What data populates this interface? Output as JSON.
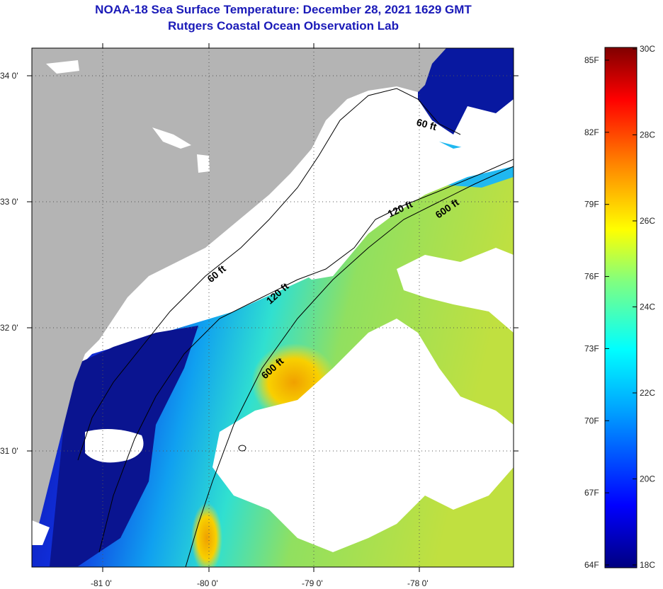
{
  "title": {
    "line1": "NOAA-18 Sea Surface Temperature:  December 28, 2021 1629 GMT",
    "line2": "Rutgers Coastal Ocean Observation Lab"
  },
  "map": {
    "lat_labels": [
      "34 0'",
      "33 0'",
      "32 0'",
      "31 0'"
    ],
    "lon_labels": [
      "-81 0'",
      "-80 0'",
      "-79 0'",
      "-78 0'"
    ],
    "depth_contours": [
      "60 ft",
      "120 ft",
      "600 ft",
      "60 ft",
      "120 ft",
      "600 ft"
    ],
    "colors": {
      "land": "#b4b4b4",
      "cloud": "#ffffff",
      "cold": "#0a1aa0",
      "warm": "#f0b000"
    }
  },
  "colorbar": {
    "fahrenheit": [
      "85F",
      "82F",
      "79F",
      "76F",
      "73F",
      "70F",
      "67F",
      "64F"
    ],
    "celsius": [
      "30C",
      "28C",
      "26C",
      "24C",
      "22C",
      "20C",
      "18C"
    ]
  }
}
